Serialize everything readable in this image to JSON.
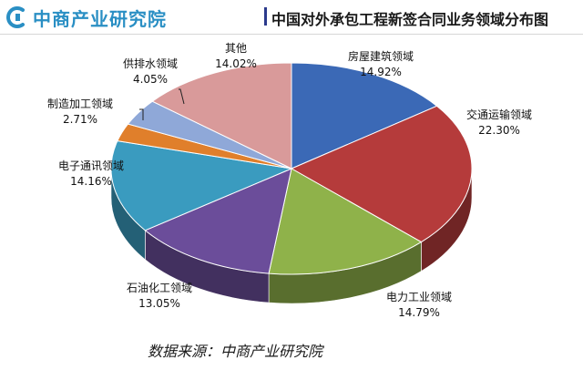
{
  "header": {
    "logo_text": "中商产业研究院",
    "title": "中国对外承包工程新签合同业务领域分布图"
  },
  "chart_data": {
    "type": "pie",
    "title": "中国对外承包工程新签合同业务领域分布图",
    "categories": [
      "房屋建筑领域",
      "交通运输领域",
      "电力工业领域",
      "石油化工领域",
      "电子通讯领域",
      "制造加工领域",
      "供排水领域",
      "其他"
    ],
    "values": [
      14.92,
      22.3,
      14.79,
      13.05,
      14.16,
      2.71,
      4.05,
      14.02
    ],
    "labels": [
      "14.92%",
      "22.30%",
      "14.79%",
      "13.05%",
      "14.16%",
      "2.71%",
      "4.05%",
      "14.02%"
    ],
    "colors": [
      "#3b69b6",
      "#b53b3b",
      "#8fb24a",
      "#6b4d9a",
      "#3a9bbf",
      "#e07f2b",
      "#8fa8d8",
      "#d99a9a"
    ]
  },
  "footer": {
    "source": "数据来源：中商产业研究院"
  }
}
